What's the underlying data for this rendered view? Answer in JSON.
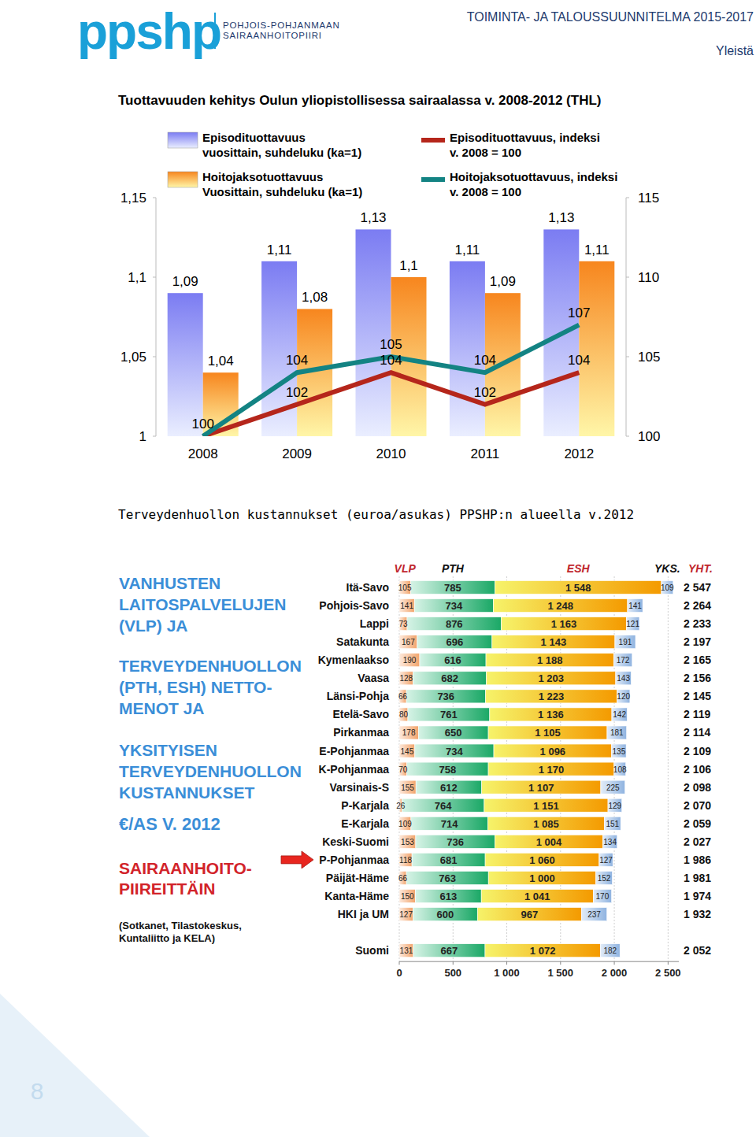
{
  "page": {
    "logo": "ppshp",
    "logo_subtitle": [
      "POHJOIS-POHJANMAAN",
      "SAIRAANHOITOPIIRI"
    ],
    "header": "TOIMINTA- JA TALOUSSUUNNITELMA 2015-2017",
    "section": "Yleistä",
    "page_number": 8
  },
  "chart_data": [
    {
      "type": "bar",
      "title": "Tuottavuuden kehitys Oulun yliopistollisessa sairaalassa v. 2008-2012 (THL)",
      "categories": [
        "2008",
        "2009",
        "2010",
        "2011",
        "2012"
      ],
      "ylim": [
        1,
        1.15
      ],
      "yticks": [
        1,
        {
          "value": 1.05,
          "label": "1,05"
        },
        {
          "value": 1.1,
          "label": "1,1"
        },
        {
          "value": 1.15,
          "label": "1,15"
        }
      ],
      "y2lim": [
        100,
        115
      ],
      "y2ticks": [
        100,
        105,
        110,
        115
      ],
      "data_labels": true,
      "legend": "top",
      "grid": false,
      "series": [
        {
          "name": "Episodituottavuus\nvuosittain, suhdeluku (ka=1)",
          "type": "bar",
          "color": "#7b7cf2",
          "values": [
            1.09,
            1.11,
            1.13,
            1.11,
            1.13
          ],
          "value_labels": [
            "1,09",
            "1,11",
            "1,13",
            "1,11",
            "1,13"
          ]
        },
        {
          "name": "Hoitojaksotuottavuus\nVuosittain, suhdeluku (ka=1)",
          "type": "bar",
          "color": "#f7861e",
          "values": [
            1.04,
            1.08,
            1.1,
            1.09,
            1.11
          ],
          "value_labels": [
            "1,04",
            "1,08",
            "1,1",
            "1,09",
            "1,11"
          ]
        },
        {
          "name": "Episodituottavuus, indeksi\nv. 2008 = 100",
          "type": "line",
          "axis": "y2",
          "color": "#b5261b",
          "values": [
            100,
            102,
            104,
            102,
            104
          ]
        },
        {
          "name": "Hoitojaksotuottavuus, indeksi\nv. 2008 = 100",
          "type": "line",
          "axis": "y2",
          "color": "#138383",
          "values": [
            100,
            104,
            105,
            104,
            107
          ],
          "value_labels": [
            null,
            "104",
            "105",
            "104",
            "107"
          ]
        }
      ]
    },
    {
      "type": "bar",
      "orientation": "horizontal",
      "stacked": true,
      "data_labels": true,
      "grid": true,
      "title": "Terveydenhuollon kustannukset (euroa/asukas) PPSHP:n alueella v.2012",
      "categories": [
        "Itä-Savo",
        "Pohjois-Savo",
        "Lappi",
        "Satakunta",
        "Kymenlaakso",
        "Vaasa",
        "Länsi-Pohja",
        "Etelä-Savo",
        "Pirkanmaa",
        "E-Pohjanmaa",
        "K-Pohjanmaa",
        "Varsinais-S",
        "P-Karjala",
        "E-Karjala",
        "Keski-Suomi",
        "P-Pohjanmaa",
        "Päijät-Häme",
        "Kanta-Häme",
        "HKI ja UM",
        null,
        "Suomi"
      ],
      "xlim": [
        0,
        2600
      ],
      "xticks": [
        0,
        500,
        {
          "value": 1000,
          "label": "1 000"
        },
        {
          "value": 1500,
          "label": "1 500"
        },
        {
          "value": 2000,
          "label": "2 000"
        },
        {
          "value": 2500,
          "label": "2 500"
        }
      ],
      "series": [
        {
          "name": "VLP",
          "color": "#f2a46b",
          "values": [
            105,
            141,
            73,
            167,
            190,
            128,
            66,
            80,
            178,
            145,
            70,
            155,
            26,
            109,
            153,
            118,
            66,
            150,
            127,
            null,
            131
          ]
        },
        {
          "name": "PTH",
          "color": "#1aa866",
          "values": [
            785,
            734,
            876,
            696,
            616,
            682,
            736,
            761,
            650,
            734,
            758,
            612,
            764,
            714,
            736,
            681,
            763,
            613,
            600,
            null,
            667
          ]
        },
        {
          "name": "ESH",
          "color": "#f49a00",
          "values": [
            1548,
            1248,
            1163,
            1143,
            1188,
            1203,
            1223,
            1136,
            1105,
            1096,
            1170,
            1107,
            1151,
            1085,
            1004,
            1060,
            1000,
            1041,
            967,
            null,
            1072
          ],
          "value_labels": [
            "1 548",
            "1 248",
            "1 163",
            "1 143",
            "1 188",
            "1 203",
            "1 223",
            "1 136",
            "1 105",
            "1 096",
            "1 170",
            "1 107",
            "1 151",
            "1 085",
            "1 004",
            "1 060",
            "1 000",
            "1 041",
            "967",
            null,
            "1 072"
          ]
        },
        {
          "name": "YKS.",
          "color": "#8fb3e0",
          "values": [
            109,
            141,
            121,
            191,
            172,
            143,
            120,
            142,
            181,
            135,
            108,
            225,
            129,
            151,
            134,
            127,
            152,
            170,
            237,
            null,
            182
          ]
        }
      ],
      "totals": {
        "name": "YHT.",
        "values": [
          2547,
          2264,
          2233,
          2197,
          2165,
          2156,
          2145,
          2119,
          2114,
          2109,
          2106,
          2098,
          2070,
          2059,
          2027,
          1986,
          1981,
          1974,
          1932,
          null,
          2052
        ],
        "value_labels": [
          "2 547",
          "2 264",
          "2 233",
          "2 197",
          "2 165",
          "2 156",
          "2 145",
          "2 119",
          "2 114",
          "2 109",
          "2 106",
          "2 098",
          "2 070",
          "2 059",
          "2 027",
          "1 986",
          "1 981",
          "1 974",
          "1 932",
          null,
          "2 052"
        ]
      },
      "annotations": [
        [
          "VANHUSTEN",
          "LAITOSPALVELUJEN",
          "(VLP) JA"
        ],
        [
          "TERVEYDENHUOLLON",
          "(PTH, ESH) NETTO-",
          "MENOT JA"
        ],
        [
          "YKSITYISEN",
          "TERVEYDENHUOLLON",
          "KUSTANNUKSET"
        ],
        [
          "€/AS V. 2012"
        ],
        [
          "SAIRAANHOITO-",
          "PIIREITTÄIN"
        ],
        [
          "(Sotkanet, Tilastokeskus,",
          "Kuntaliitto ja KELA)"
        ]
      ]
    }
  ]
}
